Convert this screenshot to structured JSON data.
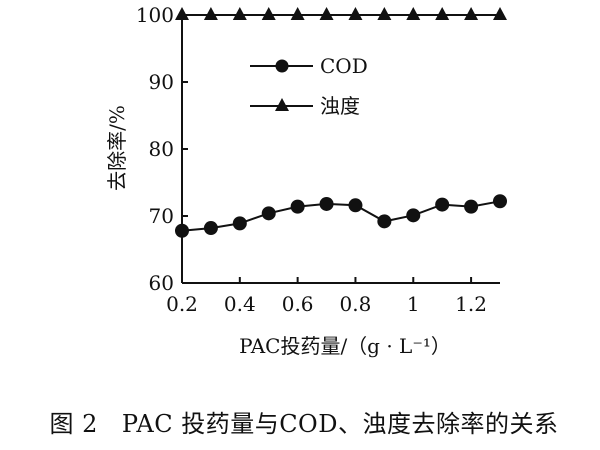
{
  "chart_data": {
    "type": "line",
    "xlabel": "PAC投药量/（g · L⁻¹）",
    "ylabel": "去除率/%",
    "xlim": [
      0.2,
      1.3
    ],
    "ylim": [
      60,
      100
    ],
    "x_ticks": [
      "0.2",
      "0.4",
      "0.6",
      "0.8",
      "1",
      "1.2"
    ],
    "y_ticks": [
      "60",
      "70",
      "80",
      "90",
      "100"
    ],
    "x": [
      0.2,
      0.3,
      0.4,
      0.5,
      0.6,
      0.7,
      0.8,
      0.9,
      1.0,
      1.1,
      1.2,
      1.3
    ],
    "series": [
      {
        "name": "COD",
        "marker": "circle",
        "values": [
          67.8,
          68.2,
          68.9,
          70.4,
          71.4,
          71.8,
          71.6,
          69.2,
          70.1,
          71.7,
          71.4,
          72.2
        ]
      },
      {
        "name": "浊度",
        "marker": "triangle",
        "values": [
          100,
          100,
          100,
          100,
          100,
          100,
          100,
          100,
          100,
          100,
          100,
          100
        ]
      }
    ],
    "legend_position": "upper-center",
    "grid": false
  },
  "caption": {
    "label": "图 2",
    "text": "PAC 投药量与COD、浊度去除率的关系"
  }
}
